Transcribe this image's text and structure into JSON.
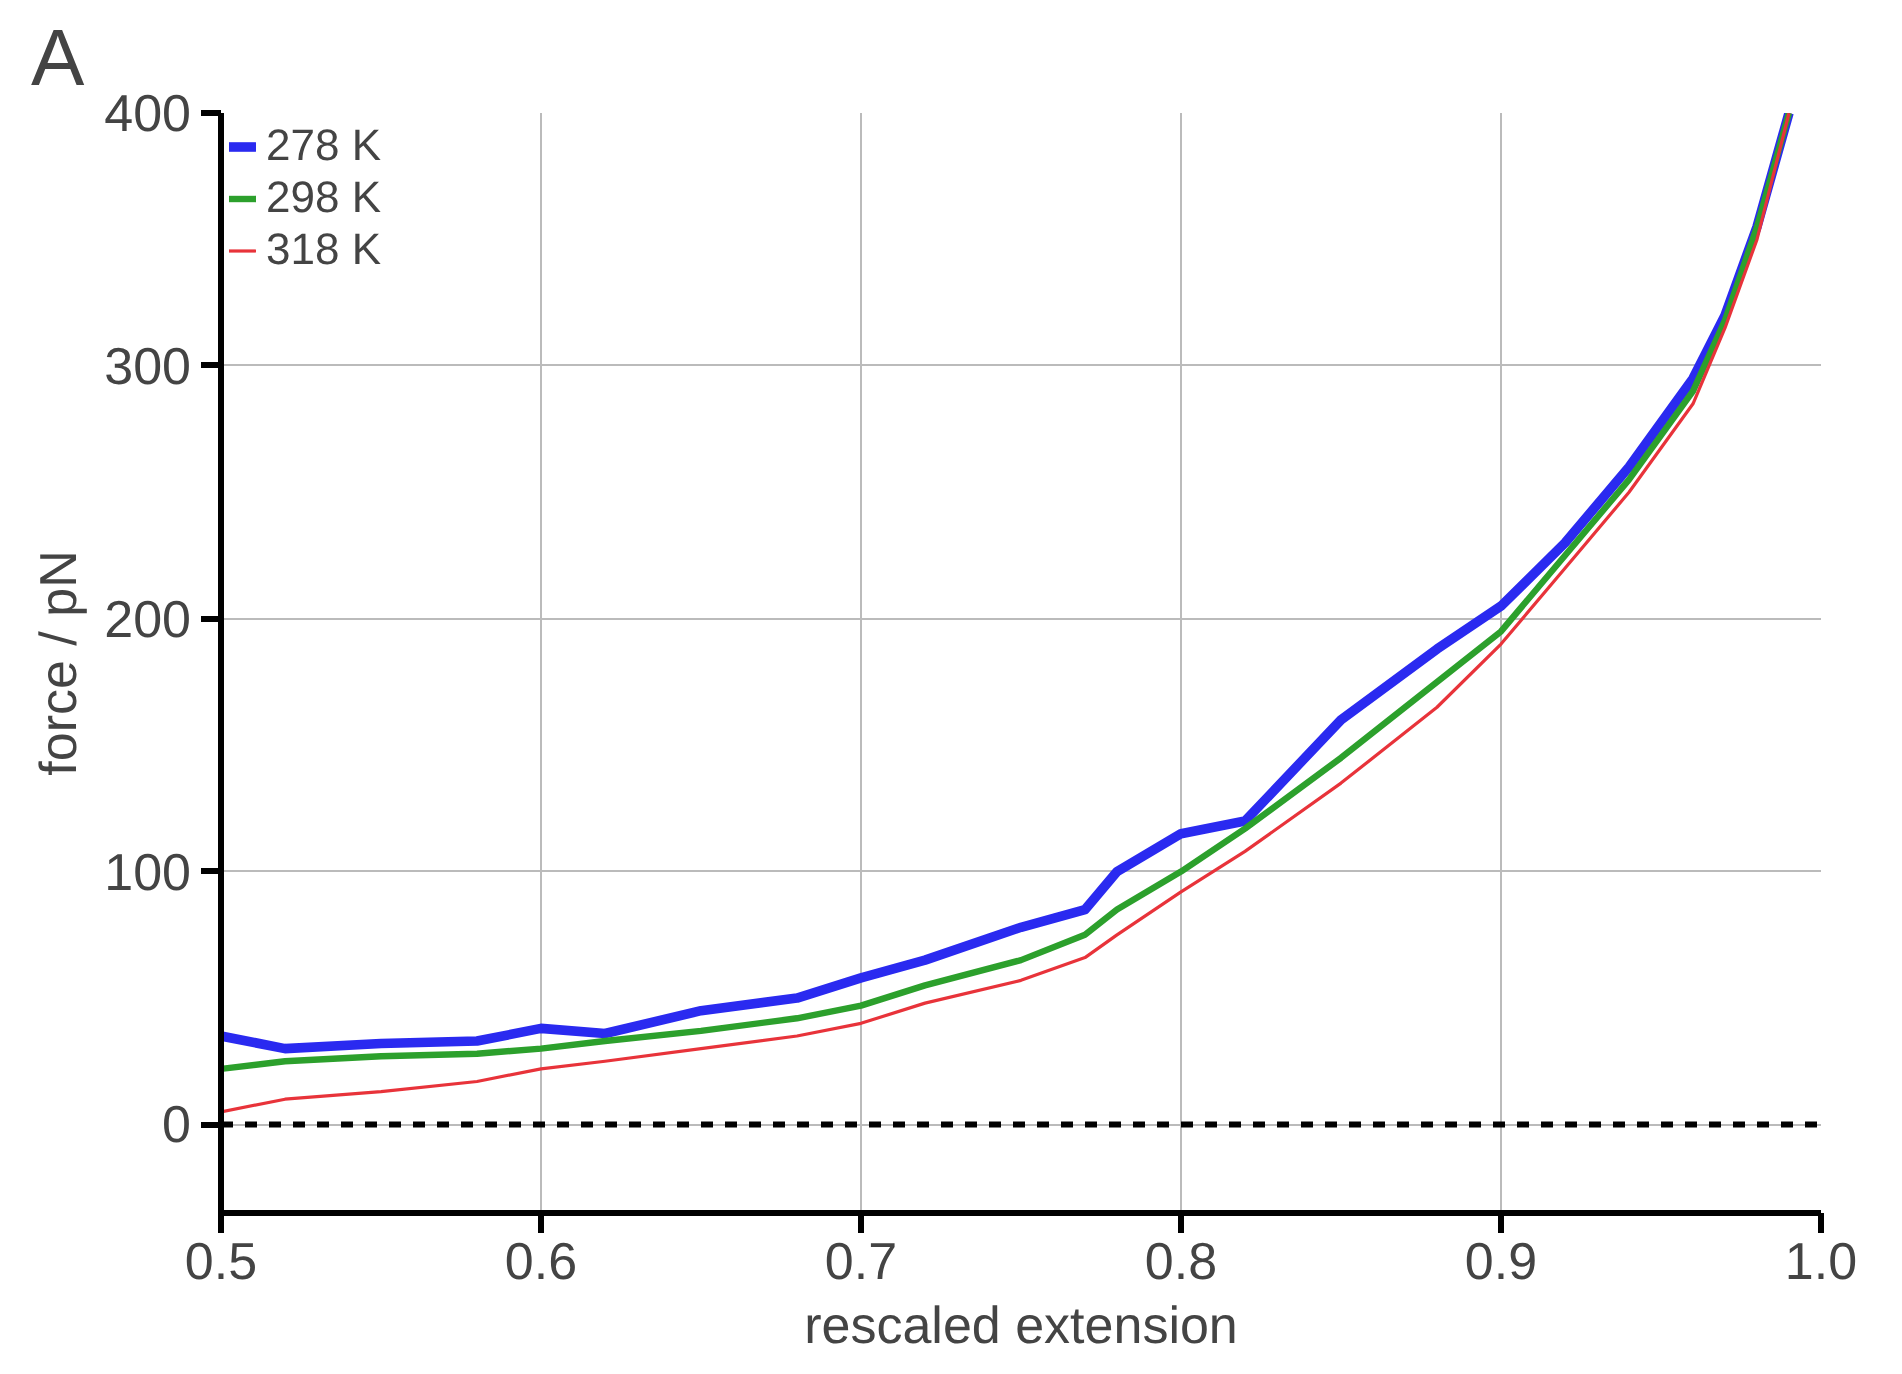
{
  "chart_data": {
    "type": "line",
    "xlabel": "rescaled extension",
    "ylabel": "force / pN",
    "annotations": [
      "A"
    ],
    "x": [
      0.5,
      0.52,
      0.55,
      0.58,
      0.6,
      0.62,
      0.65,
      0.68,
      0.7,
      0.72,
      0.75,
      0.77,
      0.78,
      0.8,
      0.82,
      0.85,
      0.88,
      0.9,
      0.92,
      0.94,
      0.96,
      0.97,
      0.98,
      0.99
    ],
    "series": [
      {
        "name": "278 K",
        "color": "#2a2af0",
        "values": [
          35,
          30,
          32,
          33,
          38,
          36,
          45,
          50,
          58,
          65,
          78,
          85,
          100,
          115,
          120,
          160,
          188,
          205,
          230,
          260,
          295,
          320,
          355,
          400
        ]
      },
      {
        "name": "298 K",
        "color": "#2ca02c",
        "values": [
          22,
          25,
          27,
          28,
          30,
          33,
          37,
          42,
          47,
          55,
          65,
          75,
          85,
          100,
          117,
          145,
          175,
          195,
          225,
          255,
          290,
          318,
          355,
          400
        ]
      },
      {
        "name": "318 K",
        "color": "#e8333a",
        "values": [
          5,
          10,
          13,
          17,
          22,
          25,
          30,
          35,
          40,
          48,
          57,
          66,
          75,
          92,
          108,
          135,
          165,
          190,
          220,
          250,
          285,
          315,
          350,
          400
        ]
      }
    ],
    "xlim": [
      0.5,
      1.0
    ],
    "xticks": [
      0.5,
      0.6,
      0.7,
      0.8,
      0.9,
      {
        "value": 1.0,
        "label": "1.0"
      }
    ],
    "ylim": [
      -35,
      400
    ],
    "yticks": [
      0,
      100,
      200,
      300,
      400
    ],
    "ref_lines": [
      {
        "axis": "y",
        "value": 0,
        "color": "#000000",
        "line_style": "dashed"
      }
    ],
    "grid": true,
    "legend": "top left",
    "line_style": "solid"
  }
}
